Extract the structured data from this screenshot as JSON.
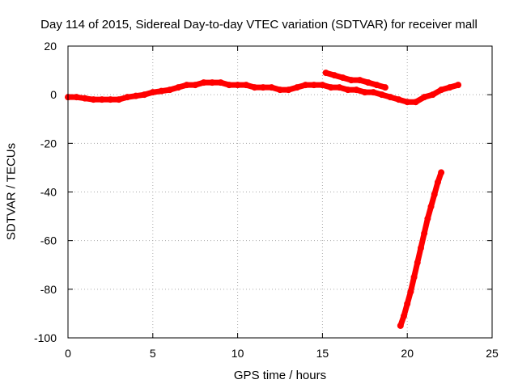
{
  "chart_data": {
    "type": "scatter",
    "title": "Day 114 of 2015, Sidereal Day-to-day VTEC variation (SDTVAR) for receiver mall",
    "xlabel": "GPS time / hours",
    "ylabel": "SDTVAR / TECUs",
    "xlim": [
      0,
      25
    ],
    "ylim": [
      -100,
      20
    ],
    "xticks": [
      "0",
      "5",
      "10",
      "15",
      "20",
      "25"
    ],
    "yticks": [
      "20",
      "0",
      "-20",
      "-40",
      "-60",
      "-80",
      "-100"
    ],
    "grid": true,
    "legend": "none",
    "marker_color": "#ff0000",
    "series": [
      {
        "x": [
          0.0,
          0.5,
          1.0,
          1.5,
          2.0,
          2.5,
          3.0,
          3.5,
          4.0,
          4.5,
          5.0,
          5.5,
          6.0,
          6.5,
          7.0,
          7.5,
          8.0,
          8.5,
          9.0,
          9.5,
          10.0,
          10.5,
          11.0,
          11.5,
          12.0,
          12.5,
          13.0,
          13.5,
          14.0,
          14.5,
          15.0,
          15.5,
          16.0,
          16.5,
          17.0,
          17.5,
          18.0,
          18.5,
          19.0,
          19.5,
          20.0,
          20.5,
          21.0,
          21.5,
          22.0,
          22.5,
          23.0
        ],
        "y": [
          -1,
          -1,
          -1.5,
          -2,
          -2,
          -2,
          -2,
          -1,
          -0.5,
          0,
          1,
          1.5,
          2,
          3,
          4,
          4,
          5,
          5,
          5,
          4,
          4,
          4,
          3,
          3,
          3,
          2,
          2,
          3,
          4,
          4,
          4,
          3,
          3,
          2,
          2,
          1,
          1,
          0,
          -1,
          -2,
          -3,
          -3,
          -1,
          0,
          2,
          3,
          4
        ]
      },
      {
        "x": [
          15.2,
          15.7,
          16.2,
          16.7,
          17.2,
          17.7,
          18.2,
          18.7
        ],
        "y": [
          9,
          8,
          7,
          6,
          6,
          5,
          4,
          3
        ]
      },
      {
        "x": [
          19.6,
          19.8,
          20.0,
          20.2,
          20.4,
          20.6,
          20.8,
          21.0,
          21.2,
          21.4,
          21.6,
          21.8,
          22.0
        ],
        "y": [
          -95,
          -91,
          -86,
          -81,
          -75,
          -69,
          -63,
          -57,
          -51,
          -46,
          -41,
          -36,
          -32
        ]
      }
    ]
  }
}
